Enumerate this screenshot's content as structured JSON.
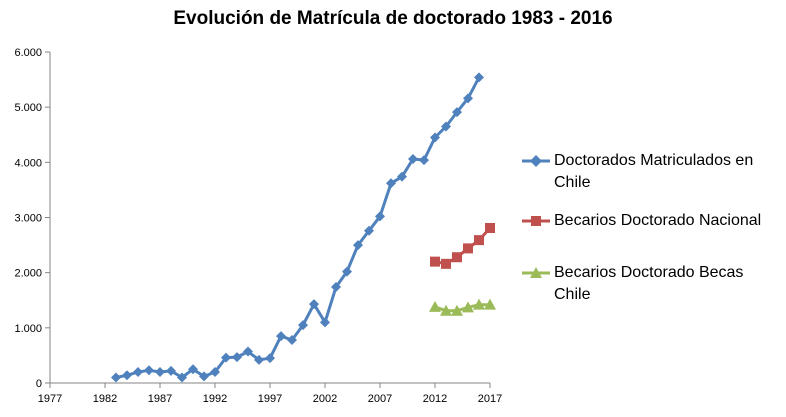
{
  "chart_data": {
    "type": "line",
    "title": "Evolución  de  Matrícula  de doctorado  1983 - 2016",
    "xlim": [
      1977,
      2017
    ],
    "ylim": [
      0,
      6000
    ],
    "x_ticks": [
      "1977",
      "1982",
      "1987",
      "1992",
      "1997",
      "2002",
      "2007",
      "2012",
      "2017"
    ],
    "x_tick_values": [
      1977,
      1982,
      1987,
      1992,
      1997,
      2002,
      2007,
      2012,
      2017
    ],
    "y_ticks": [
      "0",
      "1.000",
      "2.000",
      "3.000",
      "4.000",
      "5.000",
      "6.000"
    ],
    "y_tick_values": [
      0,
      1000,
      2000,
      3000,
      4000,
      5000,
      6000
    ],
    "grid": false,
    "legend_position": "right",
    "series": [
      {
        "name": "Doctorados Matriculados en Chile",
        "color": "#4F81BD",
        "marker": "diamond",
        "x": [
          1983,
          1984,
          1985,
          1986,
          1987,
          1988,
          1989,
          1990,
          1991,
          1992,
          1993,
          1994,
          1995,
          1996,
          1997,
          1998,
          1999,
          2000,
          2001,
          2002,
          2003,
          2004,
          2005,
          2006,
          2007,
          2008,
          2009,
          2010,
          2011,
          2012,
          2013,
          2014,
          2015,
          2016
        ],
        "values": [
          100,
          140,
          200,
          230,
          200,
          220,
          100,
          250,
          120,
          200,
          460,
          470,
          570,
          420,
          450,
          850,
          780,
          1050,
          1430,
          1100,
          1740,
          2020,
          2500,
          2760,
          3020,
          3620,
          3740,
          4060,
          4040,
          4450,
          4650,
          4910,
          5160,
          5540
        ]
      },
      {
        "name": "Becarios Doctorado Nacional",
        "color": "#C0504D",
        "marker": "square",
        "x": [
          2012,
          2013,
          2014,
          2015,
          2016,
          2017
        ],
        "values": [
          2200,
          2160,
          2280,
          2440,
          2590,
          2810
        ]
      },
      {
        "name": "Becarios Doctorado Becas Chile",
        "color": "#9BBB59",
        "marker": "triangle",
        "x": [
          2012,
          2013,
          2014,
          2015,
          2016,
          2017
        ],
        "values": [
          1380,
          1310,
          1310,
          1370,
          1420,
          1420
        ]
      }
    ]
  }
}
